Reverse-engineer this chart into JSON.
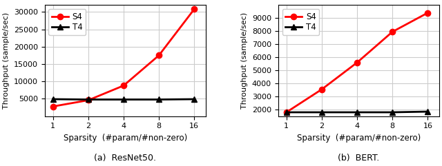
{
  "sparsity": [
    1,
    2,
    4,
    8,
    16
  ],
  "resnet50": {
    "S4": [
      2800,
      4600,
      8800,
      17500,
      30800
    ],
    "T4": [
      4900,
      4800,
      4800,
      4800,
      4900
    ]
  },
  "bert": {
    "S4": [
      1800,
      3550,
      5600,
      7950,
      9400
    ],
    "T4": [
      1800,
      1800,
      1800,
      1800,
      1850
    ]
  },
  "s4_color": "#ff0000",
  "t4_color": "#000000",
  "s4_marker": "o",
  "t4_marker": "^",
  "xlabel": "Sparsity  (#param/#non-zero)",
  "ylabel": "Throughput (sample/sec)",
  "resnet50_title": "(a)  ResNet50.",
  "bert_title": "(b)  BERT.",
  "resnet50_ylim": [
    0,
    32000
  ],
  "bert_ylim": [
    1500,
    10000
  ],
  "resnet50_yticks": [
    5000,
    10000,
    15000,
    20000,
    25000,
    30000
  ],
  "bert_yticks": [
    2000,
    3000,
    4000,
    5000,
    6000,
    7000,
    8000,
    9000
  ],
  "xticks": [
    1,
    2,
    4,
    8,
    16
  ],
  "grid_color": "#cccccc",
  "line_width": 2.0,
  "marker_size": 6,
  "bg_color": "#ffffff",
  "fig_bg_color": "#ffffff"
}
